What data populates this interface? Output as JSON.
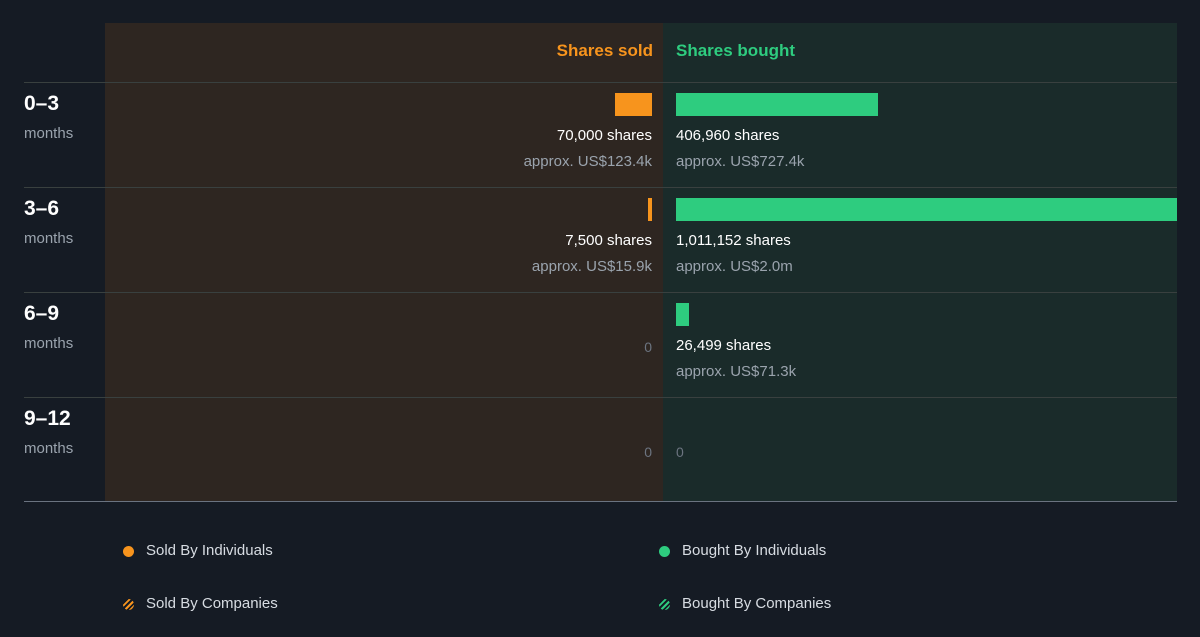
{
  "chart_data": {
    "type": "bar",
    "orientation": "horizontal-diverging",
    "headers": {
      "sold": "Shares sold",
      "bought": "Shares bought"
    },
    "categories": [
      "0–3",
      "3–6",
      "6–9",
      "9–12"
    ],
    "category_unit": "months",
    "series": [
      {
        "name": "Shares sold",
        "values": [
          70000,
          7500,
          0,
          0
        ],
        "shares_labels": [
          "70,000 shares",
          "7,500 shares",
          "0",
          "0"
        ],
        "value_labels": [
          "approx. US$123.4k",
          "approx. US$15.9k",
          "",
          ""
        ]
      },
      {
        "name": "Shares bought",
        "values": [
          406960,
          1011152,
          26499,
          0
        ],
        "shares_labels": [
          "406,960 shares",
          "1,011,152 shares",
          "26,499 shares",
          "0"
        ],
        "value_labels": [
          "approx. US$727.4k",
          "approx. US$2.0m",
          "approx. US$71.3k",
          ""
        ]
      }
    ],
    "xlim": [
      0,
      1011152
    ],
    "legend": [
      {
        "label": "Sold By Individuals",
        "color": "#f7941d",
        "pattern": "solid"
      },
      {
        "label": "Bought By Individuals",
        "color": "#2ecc7f",
        "pattern": "solid"
      },
      {
        "label": "Sold By Companies",
        "color": "#f7941d",
        "pattern": "striped"
      },
      {
        "label": "Bought By Companies",
        "color": "#2ecc7f",
        "pattern": "striped"
      }
    ],
    "colors": {
      "sold": "#f7941d",
      "bought": "#2ecc7f",
      "background": "#151b24"
    }
  }
}
